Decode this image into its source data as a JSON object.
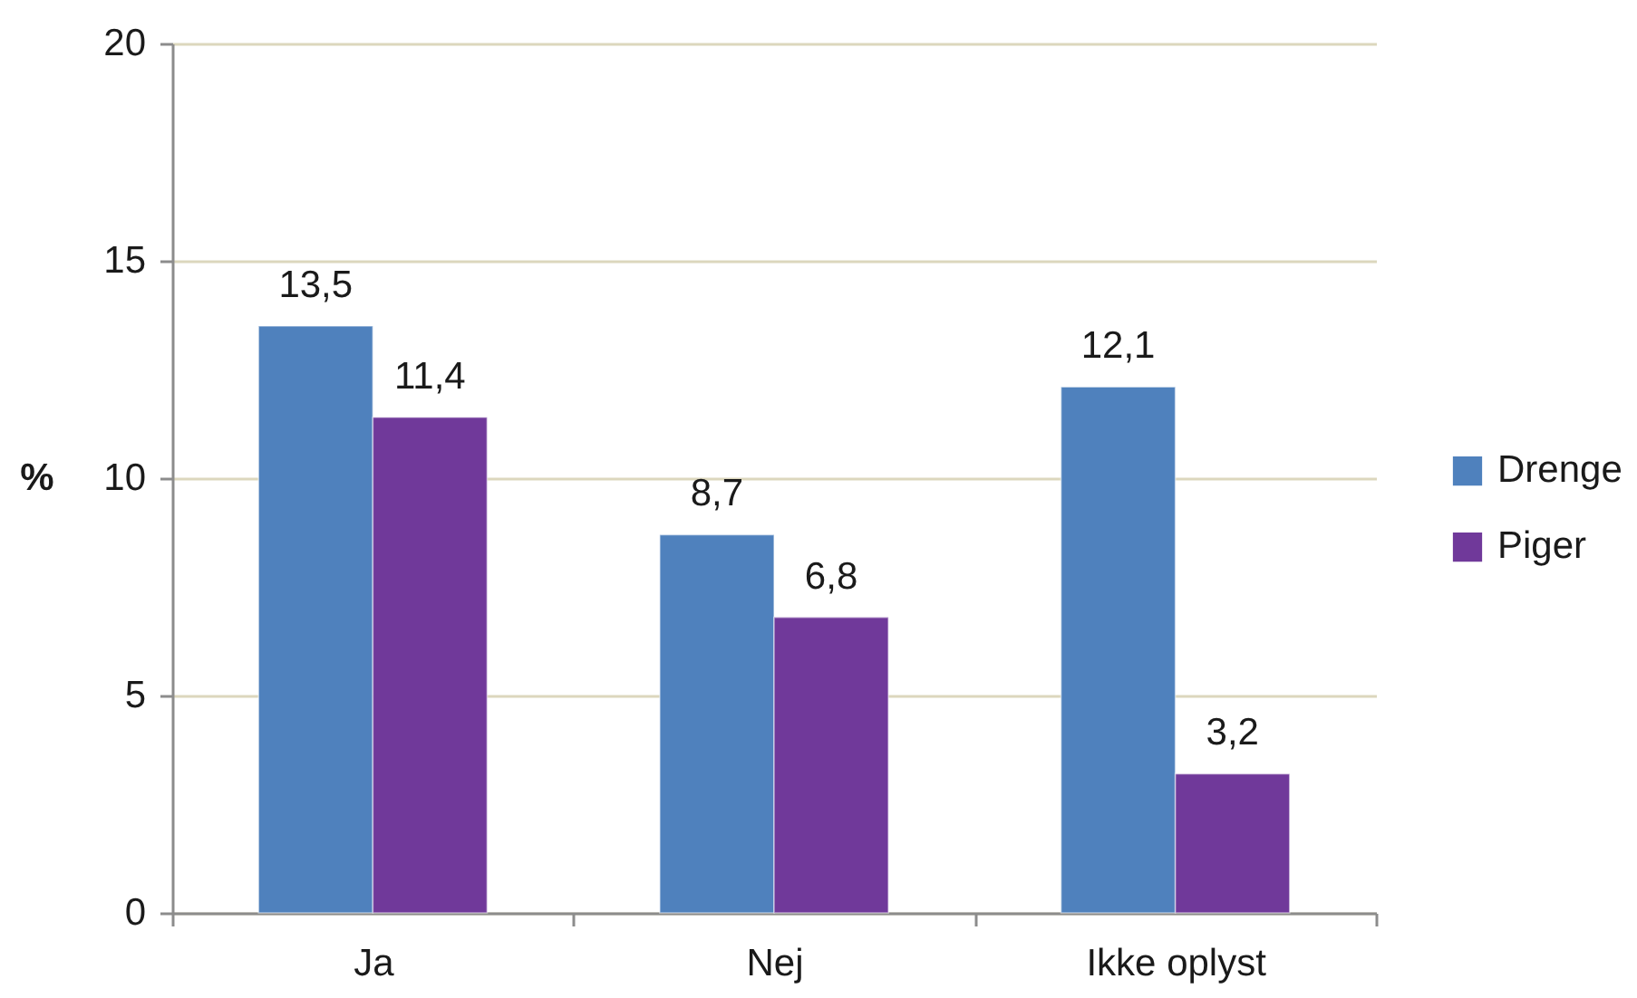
{
  "chart_data": {
    "type": "bar",
    "ylabel": "%",
    "categories": [
      "Ja",
      "Nej",
      "Ikke oplyst"
    ],
    "series": [
      {
        "name": "Drenge",
        "color": "#4f81bd",
        "values": [
          13.5,
          8.7,
          12.1
        ],
        "value_labels": [
          "13,5",
          "8,7",
          "12,1"
        ]
      },
      {
        "name": "Piger",
        "color": "#70399a",
        "values": [
          11.4,
          6.8,
          3.2
        ],
        "value_labels": [
          "11,4",
          "6,8",
          "3,2"
        ]
      }
    ],
    "ylim": [
      0,
      20
    ],
    "yticks": [
      0,
      5,
      10,
      15,
      20
    ],
    "grid": "y",
    "legend": "right"
  }
}
